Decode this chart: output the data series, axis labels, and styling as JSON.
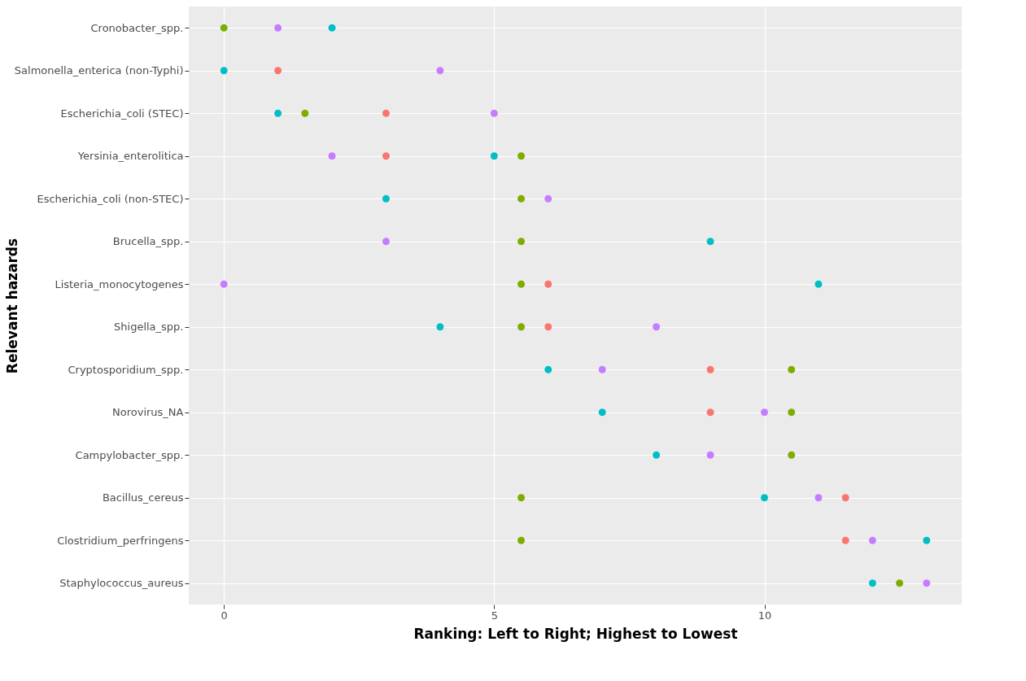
{
  "chart_data": {
    "type": "scatter",
    "orientation": "horizontal",
    "xlabel": "Ranking: Left to Right; Highest to Lowest",
    "ylabel": "Relevant hazards",
    "categories": [
      "Cronobacter_spp.",
      "Salmonella_enterica (non-Typhi)",
      "Escherichia_coli (STEC)",
      "Yersinia_enterolitica",
      "Escherichia_coli (non-STEC)",
      "Brucella_spp.",
      "Listeria_monocytogenes",
      "Shigella_spp.",
      "Cryptosporidium_spp.",
      "Norovirus_NA",
      "Campylobacter_spp.",
      "Bacillus_cereus",
      "Clostridium_perfringens",
      "Staphylococcus_aureus"
    ],
    "series": [
      {
        "color": "#f8766d",
        "values": [
          null,
          1,
          3,
          3,
          null,
          null,
          6,
          6,
          9,
          9,
          null,
          11.5,
          11.5,
          null
        ]
      },
      {
        "color": "#7cae00",
        "values": [
          0,
          null,
          1.5,
          5.5,
          5.5,
          5.5,
          5.5,
          5.5,
          10.5,
          10.5,
          10.5,
          5.5,
          5.5,
          12.5
        ]
      },
      {
        "color": "#00bfc4",
        "values": [
          2,
          0,
          1,
          5,
          3,
          9,
          11,
          4,
          6,
          7,
          8,
          10,
          13,
          12
        ]
      },
      {
        "color": "#c77cff",
        "values": [
          1,
          4,
          5,
          2,
          6,
          3,
          0,
          8,
          7,
          10,
          9,
          11,
          12,
          13
        ]
      }
    ],
    "xlim": [
      -0.65,
      13.65
    ],
    "xticks": [
      0,
      5,
      10
    ],
    "grid": true,
    "marker": "circle"
  }
}
